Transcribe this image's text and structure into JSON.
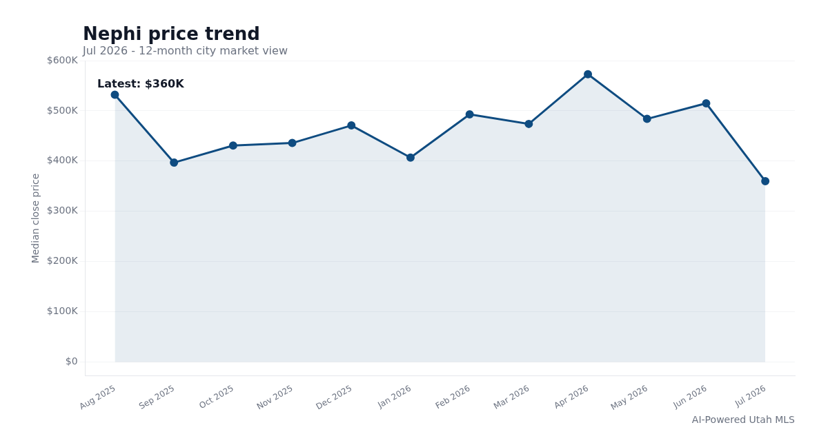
{
  "chart_data": {
    "type": "area",
    "title": "Nephi price trend",
    "subtitle": "Jul 2026 - 12-month city market view",
    "ylabel": "Median close price",
    "categories": [
      "Aug 2025",
      "Sep 2025",
      "Oct 2025",
      "Nov 2025",
      "Dec 2025",
      "Jan 2026",
      "Feb 2026",
      "Mar 2026",
      "Apr 2026",
      "May 2026",
      "Jun 2026",
      "Jul 2026"
    ],
    "series": [
      {
        "color": "#0f4c81",
        "values": [
          532000,
          397000,
          431000,
          436000,
          471000,
          407000,
          493000,
          474000,
          573000,
          484000,
          515000,
          360000
        ]
      }
    ],
    "ylim": [
      -28000,
      600000
    ],
    "yticks": [
      {
        "value": 0,
        "label": "$0"
      },
      {
        "value": 100000,
        "label": "$100K"
      },
      {
        "value": 200000,
        "label": "$200K"
      },
      {
        "value": 300000,
        "label": "$300K"
      },
      {
        "value": 400000,
        "label": "$400K"
      },
      {
        "value": 500000,
        "label": "$500K"
      },
      {
        "value": 600000,
        "label": "$600K"
      }
    ],
    "grid": "y",
    "legend": false,
    "marker": "circle",
    "line_style": "solid",
    "annotations": [
      "Latest: $360K",
      "AI-Powered Utah MLS"
    ]
  }
}
